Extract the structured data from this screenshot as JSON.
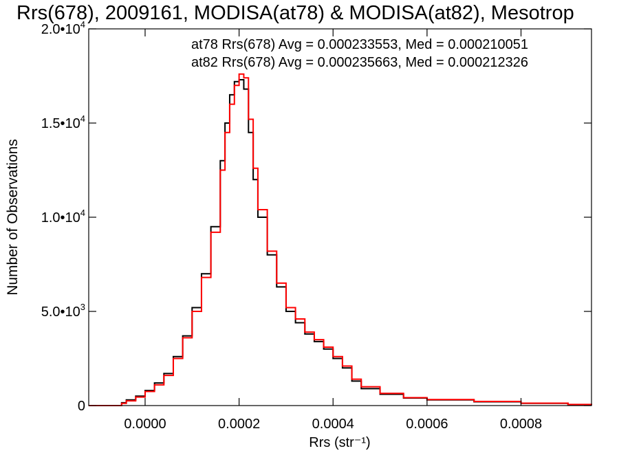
{
  "chart_data": {
    "type": "line",
    "title": "Rrs(678), 2009161, MODISA(at78) & MODISA(at82), Mesotrop",
    "xlabel": "Rrs (str⁻¹)",
    "ylabel": "Number of Observations",
    "xlim": [
      -0.00012,
      0.00095
    ],
    "ylim": [
      0,
      20000
    ],
    "x_ticks": [
      {
        "value": 0.0,
        "label": "0.0000"
      },
      {
        "value": 0.0002,
        "label": "0.0002"
      },
      {
        "value": 0.0004,
        "label": "0.0004"
      },
      {
        "value": 0.0006,
        "label": "0.0006"
      },
      {
        "value": 0.0008,
        "label": "0.0008"
      }
    ],
    "y_ticks": [
      {
        "value": 0,
        "mant": "0",
        "exp": ""
      },
      {
        "value": 5000,
        "mant": "5.0•10",
        "exp": "3"
      },
      {
        "value": 10000,
        "mant": "1.0•10",
        "exp": "4"
      },
      {
        "value": 15000,
        "mant": "1.5•10",
        "exp": "4"
      },
      {
        "value": 20000,
        "mant": "2.0•10",
        "exp": "4"
      }
    ],
    "grid": false,
    "legend": [
      {
        "text": "at78 Rrs(678) Avg = 0.000233553, Med = 0.000210051",
        "color": "#000000"
      },
      {
        "text": "at82 Rrs(678) Avg = 0.000235663, Med = 0.000212326",
        "color": "#ff0000"
      }
    ],
    "series": [
      {
        "color": "#000000",
        "x": [
          -0.00012,
          -6e-05,
          -5e-05,
          -4e-05,
          -2e-05,
          0.0,
          2e-05,
          4e-05,
          6e-05,
          8e-05,
          0.0001,
          0.00012,
          0.00014,
          0.00016,
          0.00017,
          0.00018,
          0.00019,
          0.0002,
          0.00021,
          0.00022,
          0.00023,
          0.00024,
          0.00026,
          0.00028,
          0.0003,
          0.00032,
          0.00034,
          0.00036,
          0.00038,
          0.0004,
          0.00042,
          0.00044,
          0.00046,
          0.0005,
          0.00055,
          0.0006,
          0.0007,
          0.0008,
          0.0009,
          0.00095
        ],
        "y": [
          0,
          0,
          150,
          300,
          500,
          800,
          1200,
          1700,
          2600,
          3700,
          5200,
          7000,
          9500,
          13000,
          15000,
          16500,
          17200,
          17300,
          16800,
          14500,
          12000,
          10000,
          8000,
          6300,
          5000,
          4400,
          3800,
          3400,
          3000,
          2500,
          2000,
          1300,
          900,
          600,
          400,
          300,
          200,
          120,
          50,
          20
        ]
      },
      {
        "color": "#ff0000",
        "x": [
          -0.00012,
          -6e-05,
          -5e-05,
          -4e-05,
          -2e-05,
          0.0,
          2e-05,
          4e-05,
          6e-05,
          8e-05,
          0.0001,
          0.00012,
          0.00014,
          0.00016,
          0.00017,
          0.00018,
          0.00019,
          0.0002,
          0.00021,
          0.00022,
          0.00023,
          0.00024,
          0.00026,
          0.00028,
          0.0003,
          0.00032,
          0.00034,
          0.00036,
          0.00038,
          0.0004,
          0.00042,
          0.00044,
          0.00046,
          0.0005,
          0.00055,
          0.0006,
          0.0007,
          0.0008,
          0.0009,
          0.00095
        ],
        "y": [
          0,
          0,
          120,
          250,
          450,
          750,
          1100,
          1600,
          2500,
          3600,
          5000,
          6800,
          9200,
          12500,
          14500,
          16000,
          17000,
          17600,
          17400,
          15200,
          12600,
          10400,
          8200,
          6500,
          5200,
          4600,
          3900,
          3500,
          3100,
          2600,
          2100,
          1400,
          1000,
          650,
          420,
          320,
          220,
          130,
          60,
          25
        ]
      }
    ]
  }
}
